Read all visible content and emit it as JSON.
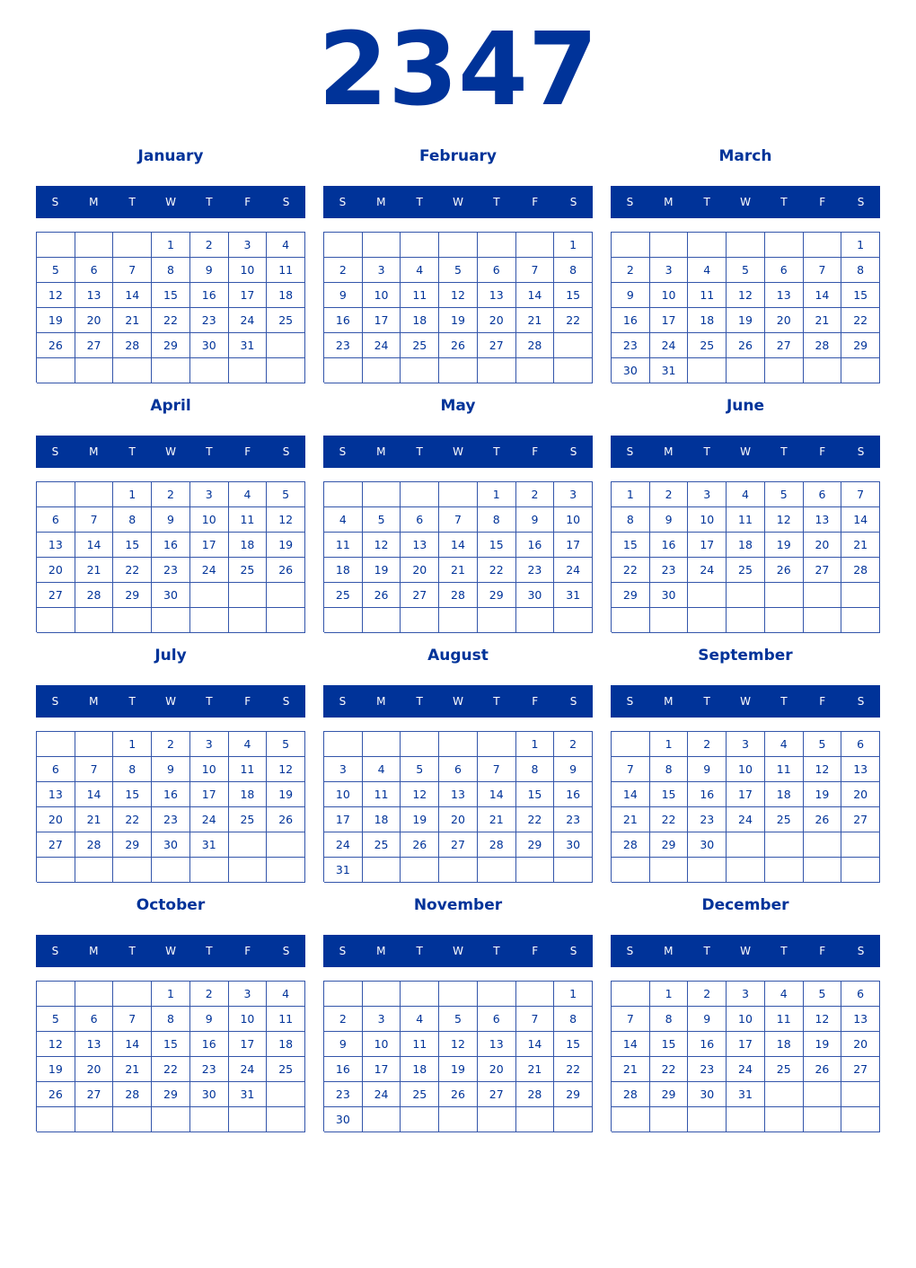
{
  "year": "2347",
  "weekday_labels": [
    "S",
    "M",
    "T",
    "W",
    "T",
    "F",
    "S"
  ],
  "colors": {
    "accent": "#003399",
    "header_text": "#ffffff"
  },
  "months": [
    {
      "name": "January",
      "weeks": [
        [
          null,
          null,
          null,
          1,
          2,
          3,
          4
        ],
        [
          5,
          6,
          7,
          8,
          9,
          10,
          11
        ],
        [
          12,
          13,
          14,
          15,
          16,
          17,
          18
        ],
        [
          19,
          20,
          21,
          22,
          23,
          24,
          25
        ],
        [
          26,
          27,
          28,
          29,
          30,
          31,
          null
        ],
        [
          null,
          null,
          null,
          null,
          null,
          null,
          null
        ]
      ]
    },
    {
      "name": "February",
      "weeks": [
        [
          null,
          null,
          null,
          null,
          null,
          null,
          1
        ],
        [
          2,
          3,
          4,
          5,
          6,
          7,
          8
        ],
        [
          9,
          10,
          11,
          12,
          13,
          14,
          15
        ],
        [
          16,
          17,
          18,
          19,
          20,
          21,
          22
        ],
        [
          23,
          24,
          25,
          26,
          27,
          28,
          null
        ],
        [
          null,
          null,
          null,
          null,
          null,
          null,
          null
        ]
      ]
    },
    {
      "name": "March",
      "weeks": [
        [
          null,
          null,
          null,
          null,
          null,
          null,
          1
        ],
        [
          2,
          3,
          4,
          5,
          6,
          7,
          8
        ],
        [
          9,
          10,
          11,
          12,
          13,
          14,
          15
        ],
        [
          16,
          17,
          18,
          19,
          20,
          21,
          22
        ],
        [
          23,
          24,
          25,
          26,
          27,
          28,
          29
        ],
        [
          30,
          31,
          null,
          null,
          null,
          null,
          null
        ]
      ]
    },
    {
      "name": "April",
      "weeks": [
        [
          null,
          null,
          1,
          2,
          3,
          4,
          5
        ],
        [
          6,
          7,
          8,
          9,
          10,
          11,
          12
        ],
        [
          13,
          14,
          15,
          16,
          17,
          18,
          19
        ],
        [
          20,
          21,
          22,
          23,
          24,
          25,
          26
        ],
        [
          27,
          28,
          29,
          30,
          null,
          null,
          null
        ],
        [
          null,
          null,
          null,
          null,
          null,
          null,
          null
        ]
      ]
    },
    {
      "name": "May",
      "weeks": [
        [
          null,
          null,
          null,
          null,
          1,
          2,
          3
        ],
        [
          4,
          5,
          6,
          7,
          8,
          9,
          10
        ],
        [
          11,
          12,
          13,
          14,
          15,
          16,
          17
        ],
        [
          18,
          19,
          20,
          21,
          22,
          23,
          24
        ],
        [
          25,
          26,
          27,
          28,
          29,
          30,
          31
        ],
        [
          null,
          null,
          null,
          null,
          null,
          null,
          null
        ]
      ]
    },
    {
      "name": "June",
      "weeks": [
        [
          1,
          2,
          3,
          4,
          5,
          6,
          7
        ],
        [
          8,
          9,
          10,
          11,
          12,
          13,
          14
        ],
        [
          15,
          16,
          17,
          18,
          19,
          20,
          21
        ],
        [
          22,
          23,
          24,
          25,
          26,
          27,
          28
        ],
        [
          29,
          30,
          null,
          null,
          null,
          null,
          null
        ],
        [
          null,
          null,
          null,
          null,
          null,
          null,
          null
        ]
      ]
    },
    {
      "name": "July",
      "weeks": [
        [
          null,
          null,
          1,
          2,
          3,
          4,
          5
        ],
        [
          6,
          7,
          8,
          9,
          10,
          11,
          12
        ],
        [
          13,
          14,
          15,
          16,
          17,
          18,
          19
        ],
        [
          20,
          21,
          22,
          23,
          24,
          25,
          26
        ],
        [
          27,
          28,
          29,
          30,
          31,
          null,
          null
        ],
        [
          null,
          null,
          null,
          null,
          null,
          null,
          null
        ]
      ]
    },
    {
      "name": "August",
      "weeks": [
        [
          null,
          null,
          null,
          null,
          null,
          1,
          2
        ],
        [
          3,
          4,
          5,
          6,
          7,
          8,
          9
        ],
        [
          10,
          11,
          12,
          13,
          14,
          15,
          16
        ],
        [
          17,
          18,
          19,
          20,
          21,
          22,
          23
        ],
        [
          24,
          25,
          26,
          27,
          28,
          29,
          30
        ],
        [
          31,
          null,
          null,
          null,
          null,
          null,
          null
        ]
      ]
    },
    {
      "name": "September",
      "weeks": [
        [
          null,
          1,
          2,
          3,
          4,
          5,
          6
        ],
        [
          7,
          8,
          9,
          10,
          11,
          12,
          13
        ],
        [
          14,
          15,
          16,
          17,
          18,
          19,
          20
        ],
        [
          21,
          22,
          23,
          24,
          25,
          26,
          27
        ],
        [
          28,
          29,
          30,
          null,
          null,
          null,
          null
        ],
        [
          null,
          null,
          null,
          null,
          null,
          null,
          null
        ]
      ]
    },
    {
      "name": "October",
      "weeks": [
        [
          null,
          null,
          null,
          1,
          2,
          3,
          4
        ],
        [
          5,
          6,
          7,
          8,
          9,
          10,
          11
        ],
        [
          12,
          13,
          14,
          15,
          16,
          17,
          18
        ],
        [
          19,
          20,
          21,
          22,
          23,
          24,
          25
        ],
        [
          26,
          27,
          28,
          29,
          30,
          31,
          null
        ],
        [
          null,
          null,
          null,
          null,
          null,
          null,
          null
        ]
      ]
    },
    {
      "name": "November",
      "weeks": [
        [
          null,
          null,
          null,
          null,
          null,
          null,
          1
        ],
        [
          2,
          3,
          4,
          5,
          6,
          7,
          8
        ],
        [
          9,
          10,
          11,
          12,
          13,
          14,
          15
        ],
        [
          16,
          17,
          18,
          19,
          20,
          21,
          22
        ],
        [
          23,
          24,
          25,
          26,
          27,
          28,
          29
        ],
        [
          30,
          null,
          null,
          null,
          null,
          null,
          null
        ]
      ]
    },
    {
      "name": "December",
      "weeks": [
        [
          null,
          1,
          2,
          3,
          4,
          5,
          6
        ],
        [
          7,
          8,
          9,
          10,
          11,
          12,
          13
        ],
        [
          14,
          15,
          16,
          17,
          18,
          19,
          20
        ],
        [
          21,
          22,
          23,
          24,
          25,
          26,
          27
        ],
        [
          28,
          29,
          30,
          31,
          null,
          null,
          null
        ],
        [
          null,
          null,
          null,
          null,
          null,
          null,
          null
        ]
      ]
    }
  ]
}
